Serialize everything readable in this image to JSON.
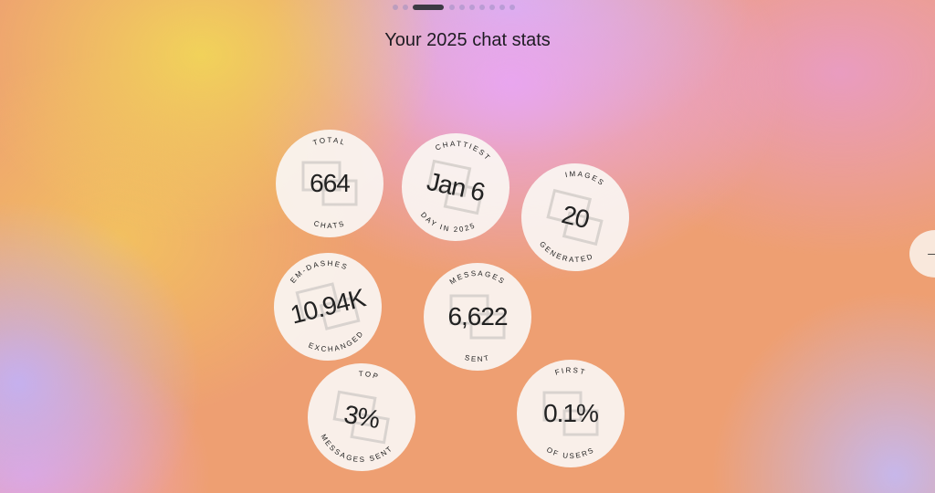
{
  "pager": {
    "count": 10,
    "active": 2
  },
  "title": "Your 2025 chat stats",
  "stats": [
    {
      "top": "TOTAL",
      "value": "664",
      "bottom": "CHATS",
      "icon": "chat-documents-icon"
    },
    {
      "top": "CHATTIEST",
      "value": "Jan 6",
      "bottom": "DAY IN 2025",
      "icon": "calendar-icon"
    },
    {
      "top": "IMAGES",
      "value": "20",
      "bottom": "GENERATED",
      "icon": "image-icon"
    },
    {
      "top": "EM-DASHES",
      "value": "10.94K",
      "bottom": "EXCHANGED",
      "icon": "dash-icon"
    },
    {
      "top": "MESSAGES",
      "value": "6,622",
      "bottom": "SENT",
      "icon": "message-bubble-icon"
    },
    {
      "top": "TOP",
      "value": "3%",
      "bottom": "MESSAGES SENT",
      "icon": "trophy-icon"
    },
    {
      "top": "FIRST",
      "value": "0.1%",
      "bottom": "OF USERS",
      "icon": "medal-icon"
    }
  ],
  "next_icon": "arrow-right-icon"
}
